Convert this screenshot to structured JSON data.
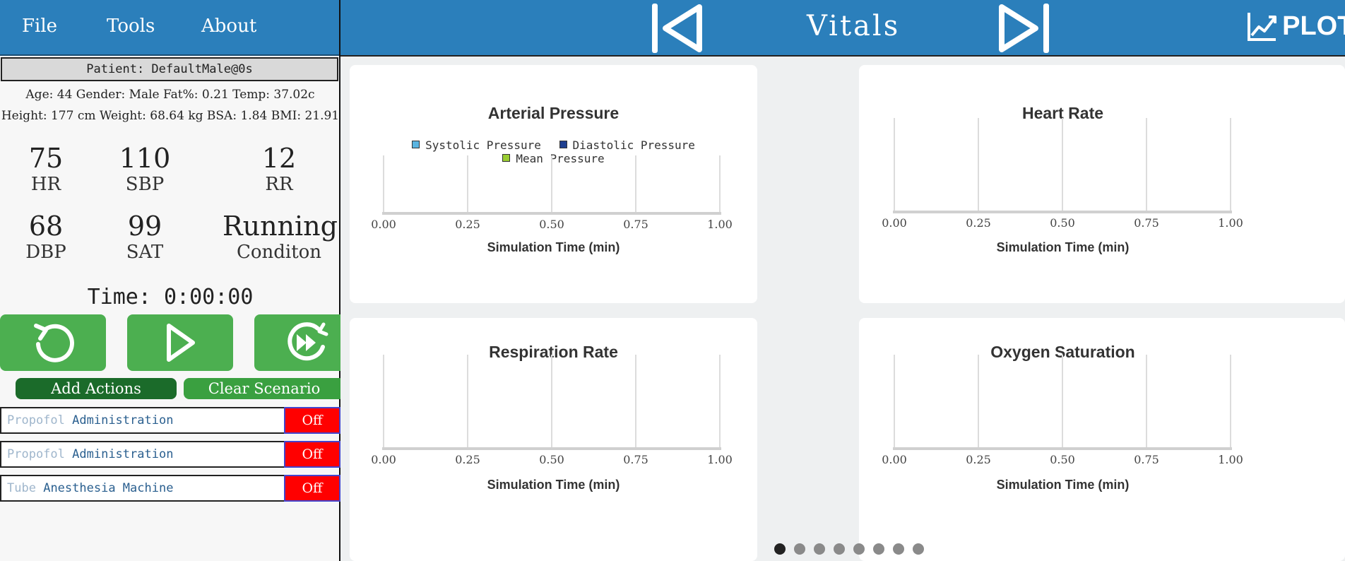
{
  "menu": {
    "file": "File",
    "tools": "Tools",
    "about": "About"
  },
  "patient": {
    "label": "Patient: DefaultMale@0s",
    "info_line1": "Age: 44 Gender: Male Fat%: 0.21 Temp: 37.02c",
    "info_line2": "Height: 177 cm Weight: 68.64 kg BSA: 1.84 BMI: 21.91"
  },
  "vitals": [
    {
      "value": "75",
      "label": "HR"
    },
    {
      "value": "110",
      "label": "SBP"
    },
    {
      "value": "12",
      "label": "RR"
    },
    {
      "value": "68",
      "label": "DBP"
    },
    {
      "value": "99",
      "label": "SAT"
    },
    {
      "value": "Running",
      "label": "Conditon"
    }
  ],
  "time": {
    "label": "Time:",
    "value": "0:00:00"
  },
  "controls": {
    "add_actions": "Add Actions",
    "clear_scenario": "Clear Scenario"
  },
  "actions": [
    {
      "drug": "Propofol",
      "kind": "Administration",
      "state": "Off"
    },
    {
      "drug": "Propofol",
      "kind": "Administration",
      "state": "Off"
    },
    {
      "drug": "Tube",
      "kind": "Anesthesia Machine",
      "state": "Off"
    }
  ],
  "header": {
    "title": "Vitals",
    "logo_text": "PLOTS"
  },
  "colors": {
    "header_blue": "#2b7fbb",
    "button_green": "#4caf50",
    "add_actions_green": "#1b6b2a",
    "clear_scenario_green": "#3aa040",
    "toggle_off_red": "#ff0000",
    "systolic": "#5ab4e0",
    "diastolic": "#1f3f8f",
    "mean": "#9acd32"
  },
  "chart_data": [
    {
      "type": "line",
      "title": "Arterial Pressure",
      "xlabel": "Simulation Time (min)",
      "x_ticks": [
        "0.00",
        "0.25",
        "0.50",
        "0.75",
        "1.00"
      ],
      "xlim": [
        0,
        1
      ],
      "series": [
        {
          "name": "Systolic Pressure",
          "values": []
        },
        {
          "name": "Diastolic Pressure",
          "values": []
        },
        {
          "name": "Mean Pressure",
          "values": []
        }
      ],
      "grid": true
    },
    {
      "type": "line",
      "title": "Heart Rate",
      "xlabel": "Simulation Time (min)",
      "x_ticks": [
        "0.00",
        "0.25",
        "0.50",
        "0.75",
        "1.00"
      ],
      "xlim": [
        0,
        1
      ],
      "series": [],
      "grid": true
    },
    {
      "type": "line",
      "title": "Respiration Rate",
      "xlabel": "Simulation Time (min)",
      "x_ticks": [
        "0.00",
        "0.25",
        "0.50",
        "0.75",
        "1.00"
      ],
      "xlim": [
        0,
        1
      ],
      "series": [],
      "grid": true
    },
    {
      "type": "line",
      "title": "Oxygen Saturation",
      "xlabel": "Simulation Time (min)",
      "x_ticks": [
        "0.00",
        "0.25",
        "0.50",
        "0.75",
        "1.00"
      ],
      "xlim": [
        0,
        1
      ],
      "series": [],
      "grid": true
    }
  ],
  "pagination": {
    "count": 8,
    "active": 0
  }
}
